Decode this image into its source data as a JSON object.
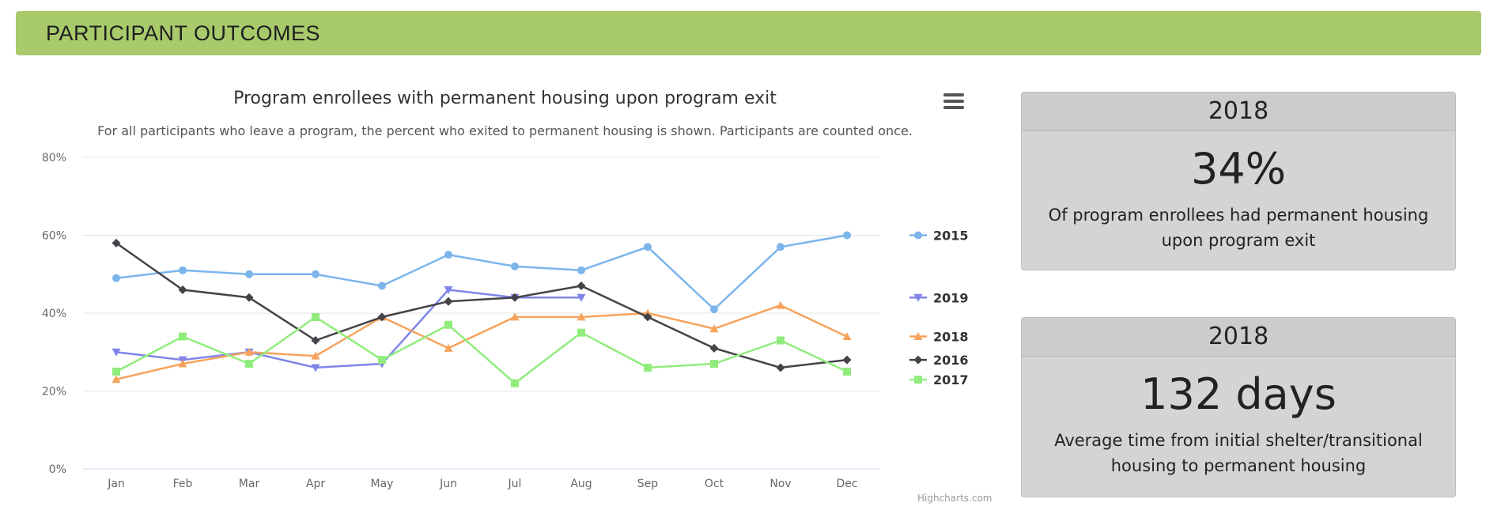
{
  "banner": {
    "title": "PARTICIPANT OUTCOMES"
  },
  "chart_data": {
    "type": "line",
    "title": "Program enrollees with permanent housing upon program exit",
    "subtitle": "For all participants who leave a program, the percent who exited to permanent housing is shown. Participants are counted once.",
    "categories": [
      "Jan",
      "Feb",
      "Mar",
      "Apr",
      "May",
      "Jun",
      "Jul",
      "Aug",
      "Sep",
      "Oct",
      "Nov",
      "Dec"
    ],
    "y_ticks": [
      "0%",
      "20%",
      "40%",
      "60%",
      "80%"
    ],
    "ylim": [
      0,
      80
    ],
    "grid": true,
    "legend_placement": "right",
    "credit": "Highcharts.com",
    "series": [
      {
        "name": "2015",
        "color": "#7cb5ec",
        "marker": "circle",
        "values": [
          49,
          51,
          50,
          50,
          47,
          55,
          52,
          51,
          57,
          41,
          57,
          60
        ]
      },
      {
        "name": "2019",
        "color": "#8085e9",
        "marker": "triangle-down",
        "values": [
          30,
          28,
          30,
          26,
          27,
          46,
          44,
          44,
          null,
          null,
          null,
          null
        ]
      },
      {
        "name": "2018",
        "color": "#f7a35c",
        "marker": "triangle",
        "values": [
          23,
          27,
          30,
          29,
          39,
          31,
          39,
          39,
          40,
          36,
          42,
          34
        ]
      },
      {
        "name": "2016",
        "color": "#434348",
        "marker": "diamond",
        "values": [
          58,
          46,
          44,
          33,
          39,
          43,
          44,
          47,
          39,
          31,
          26,
          28
        ]
      },
      {
        "name": "2017",
        "color": "#90ed7d",
        "marker": "square",
        "values": [
          25,
          34,
          27,
          39,
          28,
          37,
          22,
          35,
          26,
          27,
          33,
          25
        ]
      }
    ]
  },
  "cards": [
    {
      "year": "2018",
      "value": "34%",
      "description": "Of program enrollees had permanent housing upon program exit"
    },
    {
      "year": "2018",
      "value": "132 days",
      "description": "Average time from initial shelter/transitional housing to permanent housing"
    }
  ]
}
